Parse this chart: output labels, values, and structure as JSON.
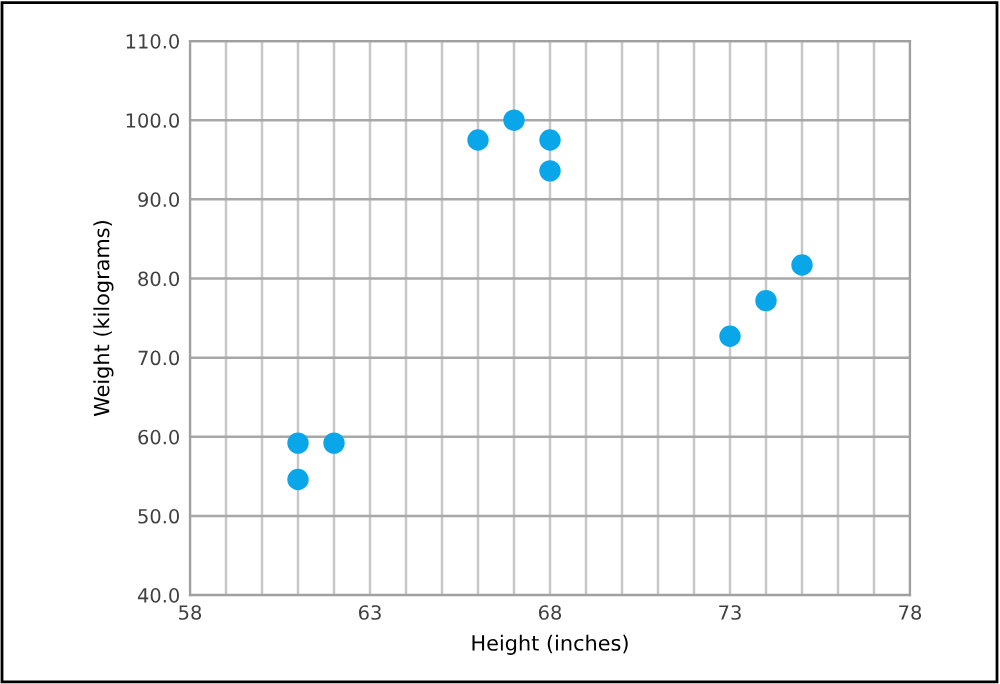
{
  "chart_data": {
    "type": "scatter",
    "xlabel": "Height (inches)",
    "ylabel": "Weight (kilograms)",
    "x": [
      61,
      61,
      62,
      66,
      67,
      68,
      68,
      73,
      74,
      75
    ],
    "series": [
      {
        "color": "#0aa6ea",
        "values": [
          59.2,
          54.6,
          59.2,
          97.5,
          100,
          97.5,
          93.6,
          72.7,
          77.2,
          81.7
        ]
      }
    ],
    "xlim": [
      58,
      78
    ],
    "xticks": [
      58,
      63,
      68,
      73,
      78
    ],
    "ylim": [
      40,
      110
    ],
    "yticks": [
      {
        "value": 40,
        "label": "40.0"
      },
      {
        "value": 50,
        "label": "50.0"
      },
      {
        "value": 60,
        "label": "60.0"
      },
      {
        "value": 70,
        "label": "70.0"
      },
      {
        "value": 80,
        "label": "80.0"
      },
      {
        "value": 90,
        "label": "90.0"
      },
      {
        "value": 100,
        "label": "100.0"
      },
      {
        "value": 110,
        "label": "110.0"
      }
    ],
    "grid": true,
    "marker": "circle"
  }
}
